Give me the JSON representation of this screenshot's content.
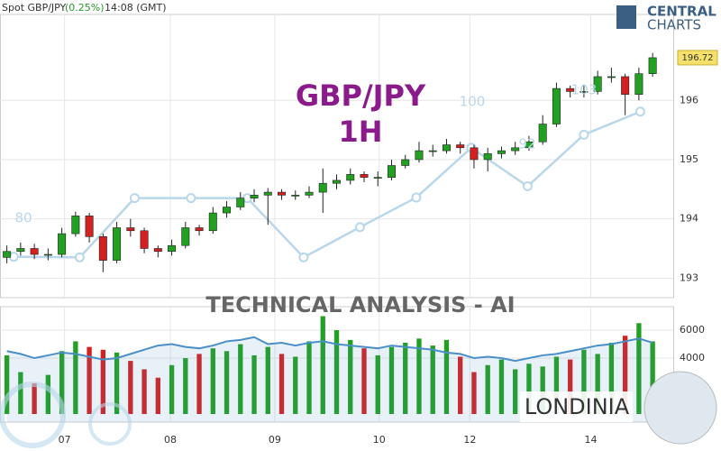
{
  "header": {
    "symbol": "Spot GBP/JPY",
    "change": "(0.25%)",
    "time": "14:08 (GMT)"
  },
  "brand": {
    "top": "CENTRAL",
    "bottom": "CHARTS"
  },
  "overlay": {
    "title": "GBP/JPY",
    "timeframe": "1H",
    "banner": "TECHNICAL  ANALYSIS - AI",
    "partner": "LONDINIA",
    "scores": [
      "80",
      "100",
      "92",
      "103"
    ]
  },
  "chart_data": [
    {
      "type": "candlestick",
      "up_color": "#22a022",
      "down_color": "#d42020",
      "grid": true,
      "open": [
        193.35,
        193.45,
        193.5,
        193.4,
        193.4,
        193.75,
        194.05,
        193.7,
        193.3,
        193.85,
        193.8,
        193.5,
        193.45,
        193.55,
        193.85,
        193.8,
        194.1,
        194.2,
        194.35,
        194.4,
        194.45,
        194.4,
        194.4,
        194.45,
        194.6,
        194.65,
        194.75,
        194.7,
        194.7,
        194.9,
        195.0,
        195.15,
        195.15,
        195.25,
        195.2,
        195.0,
        195.1,
        195.15,
        195.2,
        195.3,
        195.6,
        196.2,
        196.15,
        196.15,
        196.4,
        196.4,
        196.1,
        196.45
      ],
      "high": [
        193.55,
        193.6,
        193.58,
        193.5,
        193.85,
        194.12,
        194.1,
        193.75,
        193.95,
        194.0,
        193.85,
        193.55,
        193.65,
        193.95,
        193.9,
        194.2,
        194.3,
        194.45,
        194.5,
        194.52,
        194.5,
        194.48,
        194.55,
        194.85,
        194.75,
        194.85,
        194.8,
        194.8,
        195.0,
        195.08,
        195.3,
        195.25,
        195.35,
        195.3,
        195.25,
        195.2,
        195.22,
        195.3,
        195.4,
        195.75,
        196.3,
        196.25,
        196.25,
        196.5,
        196.55,
        196.45,
        196.55,
        196.8
      ],
      "low": [
        193.25,
        193.38,
        193.32,
        193.3,
        193.35,
        193.7,
        193.6,
        193.1,
        193.25,
        193.7,
        193.42,
        193.35,
        193.38,
        193.5,
        193.72,
        193.75,
        194.02,
        194.15,
        194.28,
        193.9,
        194.32,
        194.32,
        194.35,
        194.1,
        194.5,
        194.58,
        194.62,
        194.55,
        194.65,
        194.85,
        194.95,
        195.05,
        195.1,
        195.1,
        194.85,
        194.8,
        195.02,
        195.08,
        195.15,
        195.25,
        195.55,
        196.05,
        196.05,
        196.1,
        196.3,
        195.75,
        196.0,
        196.4
      ],
      "close": [
        193.45,
        193.5,
        193.4,
        193.4,
        193.75,
        194.05,
        193.7,
        193.3,
        193.85,
        193.8,
        193.5,
        193.45,
        193.55,
        193.85,
        193.8,
        194.1,
        194.2,
        194.35,
        194.4,
        194.45,
        194.4,
        194.4,
        194.45,
        194.6,
        194.65,
        194.75,
        194.7,
        194.7,
        194.9,
        195.0,
        195.15,
        195.15,
        195.25,
        195.2,
        195.0,
        195.1,
        195.15,
        195.2,
        195.3,
        195.6,
        196.2,
        196.15,
        196.15,
        196.4,
        196.4,
        196.1,
        196.45,
        196.72
      ],
      "ylim": [
        192.67,
        197.45
      ],
      "yticks": [
        193,
        194,
        195,
        196
      ],
      "xlim": [
        -0.5,
        48.5
      ],
      "xticks": [
        {
          "value": 4.2,
          "label": "07"
        },
        {
          "value": 11.9,
          "label": "08"
        },
        {
          "value": 19.5,
          "label": "09"
        },
        {
          "value": 27.1,
          "label": "10"
        },
        {
          "value": 33.7,
          "label": "12"
        },
        {
          "value": 42.5,
          "label": "14"
        }
      ],
      "forecast": {
        "color": "#b9d7ea",
        "x": [
          0.5,
          5.3,
          9.3,
          13.4,
          17.5,
          21.6,
          25.7,
          29.8,
          33.8,
          37.9,
          42,
          46.1
        ],
        "values": [
          193.36,
          193.35,
          194.35,
          194.35,
          194.35,
          193.35,
          193.86,
          194.36,
          195.2,
          194.55,
          195.42,
          195.81
        ]
      }
    },
    {
      "type": "volume",
      "grid": true,
      "values": [
        4200,
        3000,
        2200,
        2800,
        4500,
        5200,
        4800,
        4600,
        4400,
        3800,
        3200,
        2600,
        3500,
        4000,
        4300,
        4700,
        4500,
        5000,
        4200,
        4800,
        4300,
        4100,
        5200,
        7000,
        6000,
        5300,
        4700,
        4200,
        4800,
        5100,
        5400,
        4900,
        5300,
        4100,
        3000,
        3500,
        3900,
        3200,
        3600,
        3400,
        4100,
        3900,
        4600,
        4300,
        5100,
        5600,
        6500,
        5200
      ],
      "line": {
        "color": "#4a8fc8",
        "values": [
          4500,
          4300,
          4000,
          4200,
          4400,
          4300,
          4100,
          3900,
          4000,
          4300,
          4600,
          4900,
          5000,
          4800,
          4700,
          4900,
          5200,
          5300,
          5500,
          5000,
          5100,
          4900,
          5100,
          5200,
          5000,
          4900,
          4800,
          4700,
          4900,
          4800,
          4700,
          4600,
          4400,
          4300,
          4000,
          4100,
          4000,
          3800,
          4000,
          4200,
          4300,
          4500,
          4700,
          4900,
          5000,
          5200,
          5400,
          5100
        ]
      },
      "ylim": [
        -580,
        7680
      ],
      "yticks": [
        4000,
        6000
      ]
    }
  ]
}
